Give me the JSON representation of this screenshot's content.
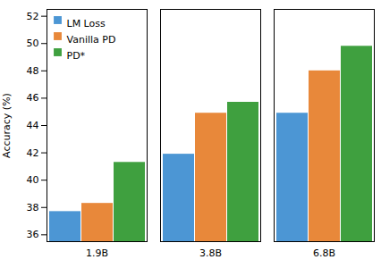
{
  "chart_data": {
    "type": "bar",
    "categories": [
      "1.9B",
      "3.8B",
      "6.8B"
    ],
    "series": [
      {
        "name": "LM Loss",
        "color": "#4c96d4",
        "values": [
          37.7,
          41.9,
          44.9
        ]
      },
      {
        "name": "Vanilla PD",
        "color": "#e8883a",
        "values": [
          38.3,
          44.9,
          48.0
        ]
      },
      {
        "name": "PD*",
        "color": "#3fa03f",
        "values": [
          41.3,
          45.7,
          49.8
        ]
      }
    ],
    "ylabel": "Accuracy (%)",
    "ylim": [
      35.5,
      52.5
    ],
    "yticks": [
      36,
      38,
      40,
      42,
      44,
      46,
      48,
      50,
      52
    ],
    "legend": "upper left",
    "grid": false
  }
}
